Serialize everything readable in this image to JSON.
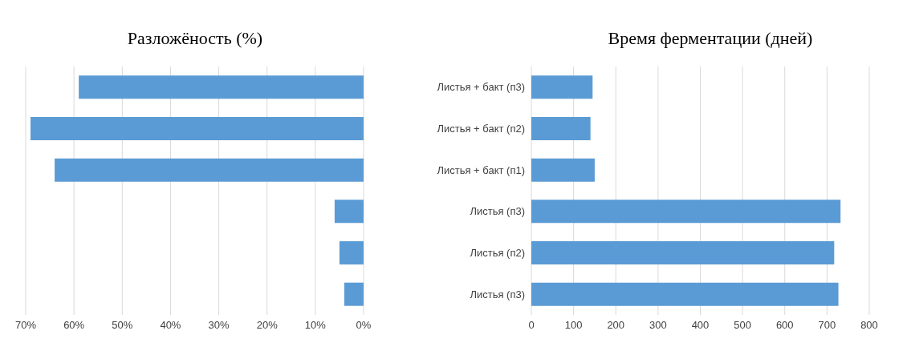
{
  "chart_data": [
    {
      "type": "bar",
      "orientation": "horizontal",
      "title": "Разложёность (%)",
      "categories": [
        null,
        null,
        null,
        null,
        null,
        null
      ],
      "values": [
        59,
        69,
        64,
        6,
        5,
        4
      ],
      "color": "#5b9bd5",
      "xlim": [
        70,
        0
      ],
      "xticks": [
        {
          "value": 70,
          "label": "70%"
        },
        {
          "value": 60,
          "label": "60%"
        },
        {
          "value": 50,
          "label": "50%"
        },
        {
          "value": 40,
          "label": "40%"
        },
        {
          "value": 30,
          "label": "30%"
        },
        {
          "value": 20,
          "label": "20%"
        },
        {
          "value": 10,
          "label": "10%"
        },
        {
          "value": 0,
          "label": "0%"
        }
      ],
      "grid": "x",
      "tick_labels": "x"
    },
    {
      "type": "bar",
      "orientation": "horizontal",
      "title": "Время ферментации (дней)",
      "categories": [
        "Листья + бакт (п3)",
        "Листья + бакт (п2)",
        "Листья + бакт (п1)",
        "Листья (п3)",
        "Листья (п2)",
        "Листья (п3)"
      ],
      "values": [
        145,
        140,
        150,
        732,
        717,
        727
      ],
      "color": "#5b9bd5",
      "xlim": [
        0,
        800
      ],
      "xticks": [
        0,
        100,
        200,
        300,
        400,
        500,
        600,
        700,
        800
      ],
      "grid": "x"
    }
  ]
}
